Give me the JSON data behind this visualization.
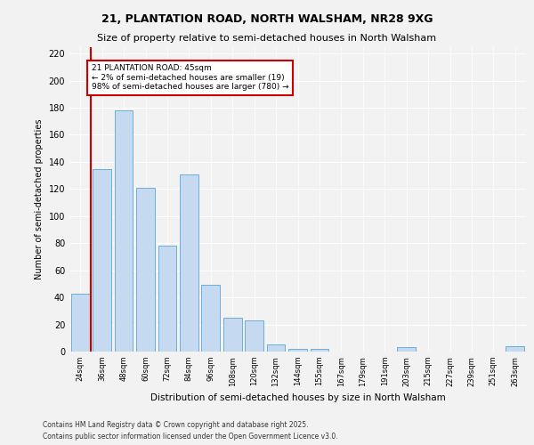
{
  "title1": "21, PLANTATION ROAD, NORTH WALSHAM, NR28 9XG",
  "title2": "Size of property relative to semi-detached houses in North Walsham",
  "xlabel": "Distribution of semi-detached houses by size in North Walsham",
  "ylabel": "Number of semi-detached properties",
  "categories": [
    "24sqm",
    "36sqm",
    "48sqm",
    "60sqm",
    "72sqm",
    "84sqm",
    "96sqm",
    "108sqm",
    "120sqm",
    "132sqm",
    "144sqm",
    "155sqm",
    "167sqm",
    "179sqm",
    "191sqm",
    "203sqm",
    "215sqm",
    "227sqm",
    "239sqm",
    "251sqm",
    "263sqm"
  ],
  "values": [
    43,
    135,
    178,
    121,
    78,
    131,
    49,
    25,
    23,
    5,
    2,
    2,
    0,
    0,
    0,
    3,
    0,
    0,
    0,
    0,
    4
  ],
  "bar_color": "#c5d9f0",
  "bar_edge_color": "#6baed6",
  "vline_x": 0.5,
  "vline_color": "#cc0000",
  "annotation_text": "21 PLANTATION ROAD: 45sqm\n← 2% of semi-detached houses are smaller (19)\n98% of semi-detached houses are larger (780) →",
  "annotation_box_color": "#cc0000",
  "annotation_bg": "#ffffff",
  "ylim": [
    0,
    225
  ],
  "yticks": [
    0,
    20,
    40,
    60,
    80,
    100,
    120,
    140,
    160,
    180,
    200,
    220
  ],
  "footnote1": "Contains HM Land Registry data © Crown copyright and database right 2025.",
  "footnote2": "Contains public sector information licensed under the Open Government Licence v3.0.",
  "bg_color": "#f2f2f2"
}
